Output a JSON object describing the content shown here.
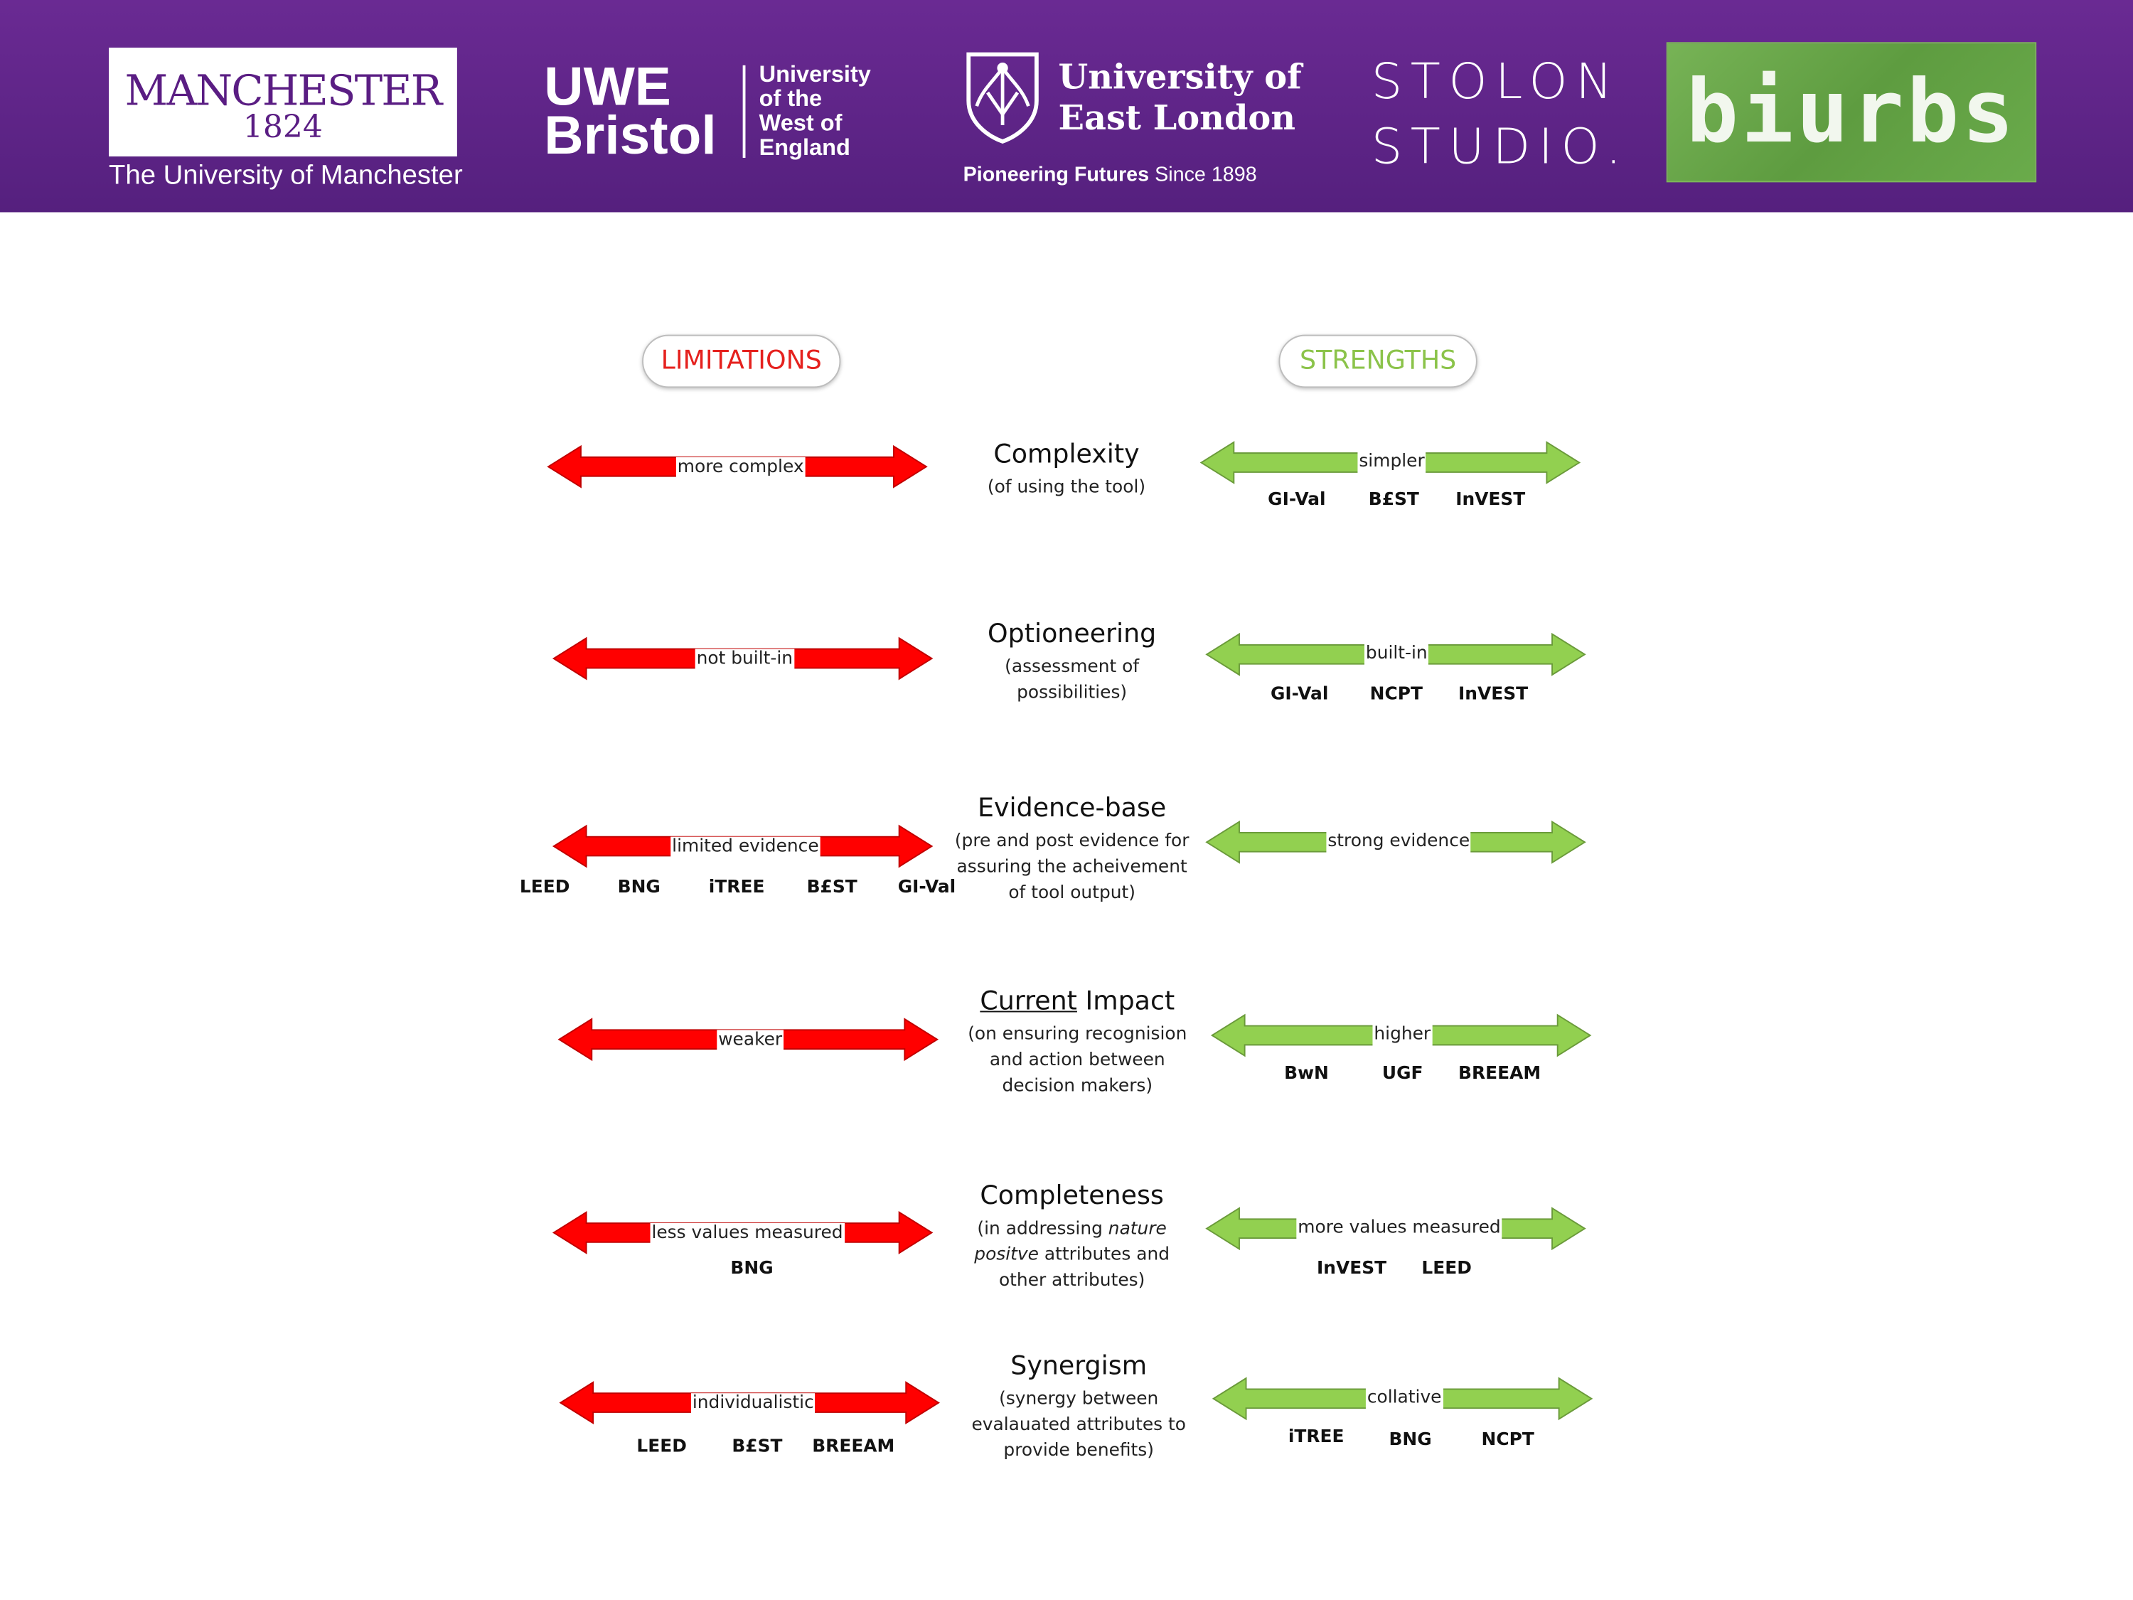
{
  "header": {
    "manchester": {
      "name": "MANCHESTER",
      "year": "1824",
      "subtitle": "The University of Manchester"
    },
    "uwe": {
      "short1": "UWE",
      "short2": "Bristol",
      "lines": [
        "University",
        "of the",
        "West of",
        "England"
      ]
    },
    "uel": {
      "line1": "University of",
      "line2": "East London",
      "tagline_bold": "Pioneering Futures",
      "tagline_rest": " Since 1898"
    },
    "stolon": {
      "line1": "STOLON",
      "line2": "STUDIO."
    },
    "biurbs": {
      "text": "biurbs"
    }
  },
  "headings": {
    "limitations": "LIMITATIONS",
    "strengths": "STRENGTHS"
  },
  "colors": {
    "limitation_arrow": "#ff0000",
    "strength_arrow": "#92d050",
    "banner": "#5e2385"
  },
  "criteria": [
    {
      "title": "Complexity",
      "description": [
        "(of using the tool)"
      ],
      "limitation": {
        "label": "more complex",
        "tools": []
      },
      "strength": {
        "label": "simpler",
        "tools": [
          "GI-Val",
          "B£ST",
          "InVEST"
        ]
      }
    },
    {
      "title": "Optioneering",
      "description": [
        "(assessment of",
        "possibilities)"
      ],
      "limitation": {
        "label": "not built-in",
        "tools": []
      },
      "strength": {
        "label": "built-in",
        "tools": [
          "GI-Val",
          "NCPT",
          "InVEST"
        ]
      }
    },
    {
      "title": "Evidence-base",
      "description": [
        "(pre and post evidence for",
        "assuring the acheivement",
        "of tool output)"
      ],
      "limitation": {
        "label": "limited evidence",
        "tools": [
          "LEED",
          "BNG",
          "iTREE",
          "B£ST",
          "GI-Val"
        ]
      },
      "strength": {
        "label": "strong evidence",
        "tools": []
      }
    },
    {
      "title_underlined": "Current",
      "title": " Impact",
      "description": [
        "(on ensuring recognision",
        "and action between",
        "decision makers)"
      ],
      "limitation": {
        "label": "weaker",
        "tools": []
      },
      "strength": {
        "label": "higher",
        "tools": [
          "BwN",
          "UGF",
          "BREEAM"
        ]
      }
    },
    {
      "title": "Completeness",
      "description_rich": [
        "(in addressing ",
        "nature",
        "positve",
        " attributes and",
        "other attributes)"
      ],
      "limitation": {
        "label": "less values measured",
        "tools": [
          "BNG"
        ]
      },
      "strength": {
        "label": "more values measured",
        "tools": [
          "InVEST",
          "LEED"
        ]
      }
    },
    {
      "title": "Synergism",
      "description": [
        "(synergy between",
        "evalauated attributes to",
        "provide benefits)"
      ],
      "limitation": {
        "label": "individualistic",
        "tools": [
          "LEED",
          "B£ST",
          "BREEAM"
        ]
      },
      "strength": {
        "label": "collative",
        "tools": [
          "iTREE",
          "BNG",
          "NCPT"
        ]
      }
    }
  ]
}
